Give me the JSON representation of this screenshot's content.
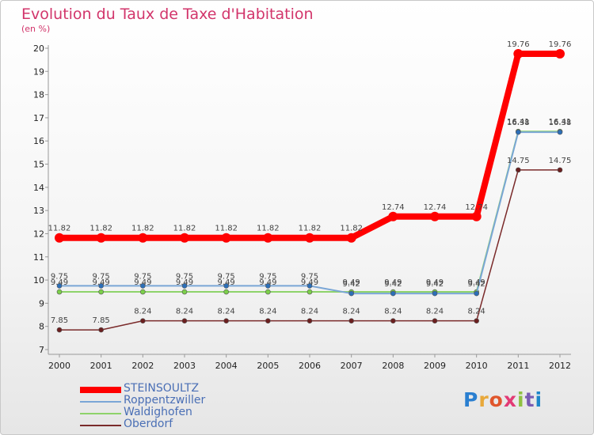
{
  "title": "Evolution du Taux de Taxe d'Habitation",
  "unit": "(en %)",
  "logo": {
    "text": "Proxiti",
    "colors": [
      "#2a7fd0",
      "#e8a83a",
      "#e0562c",
      "#e23a75",
      "#8fc043",
      "#7a5cb4",
      "#1d86c9"
    ]
  },
  "chart_data": {
    "type": "line",
    "title": "Evolution du Taux de Taxe d'Habitation",
    "ylabel": "(en %)",
    "categories": [
      "2000",
      "2001",
      "2002",
      "2003",
      "2004",
      "2005",
      "2006",
      "2007",
      "2008",
      "2009",
      "2010",
      "2011",
      "2012"
    ],
    "ylim": [
      7,
      20
    ],
    "yticks": [
      7,
      8,
      9,
      10,
      11,
      12,
      13,
      14,
      15,
      16,
      17,
      18,
      19,
      20
    ],
    "series": [
      {
        "name": "STEINSOULTZ",
        "color": "#ff0000",
        "values": [
          11.82,
          11.82,
          11.82,
          11.82,
          11.82,
          11.82,
          11.82,
          11.82,
          12.74,
          12.74,
          12.74,
          19.76,
          19.76
        ],
        "labels": [
          "11.82",
          "11.82",
          "11.82",
          "11.82",
          "11.82",
          "11.82",
          "11.82",
          "11.82",
          "12.74",
          "12.74",
          "12.74",
          "19.76",
          "19.76"
        ]
      },
      {
        "name": "Roppentzwiller",
        "color": "#7aa6d6",
        "values": [
          9.75,
          9.75,
          9.75,
          9.75,
          9.75,
          9.75,
          9.75,
          9.42,
          9.42,
          9.42,
          9.42,
          16.38,
          16.38
        ],
        "labels": [
          "9.75",
          "9.75",
          "9.75",
          "9.75",
          "9.75",
          "9.75",
          "9.75",
          "9.42",
          "9.42",
          "9.42",
          "9.42",
          "16.38",
          "16.38"
        ]
      },
      {
        "name": "Waldighofen",
        "color": "#8ed36a",
        "values": [
          9.49,
          9.49,
          9.49,
          9.49,
          9.49,
          9.49,
          9.49,
          9.49,
          9.49,
          9.49,
          9.49,
          16.41,
          16.41
        ],
        "labels": [
          "9.49",
          "9.49",
          "9.49",
          "9.49",
          "9.49",
          "9.49",
          "9.49",
          "9.49",
          "9.49",
          "9.49",
          "9.49",
          "16.41",
          "16.41"
        ]
      },
      {
        "name": "Oberdorf",
        "color": "#7a2a2a",
        "values": [
          7.85,
          7.85,
          8.24,
          8.24,
          8.24,
          8.24,
          8.24,
          8.24,
          8.24,
          8.24,
          8.24,
          14.75,
          14.75
        ],
        "labels": [
          "7.85",
          "7.85",
          "8.24",
          "8.24",
          "8.24",
          "8.24",
          "8.24",
          "8.24",
          "8.24",
          "8.24",
          "8.24",
          "14.75",
          "14.75"
        ]
      }
    ]
  }
}
